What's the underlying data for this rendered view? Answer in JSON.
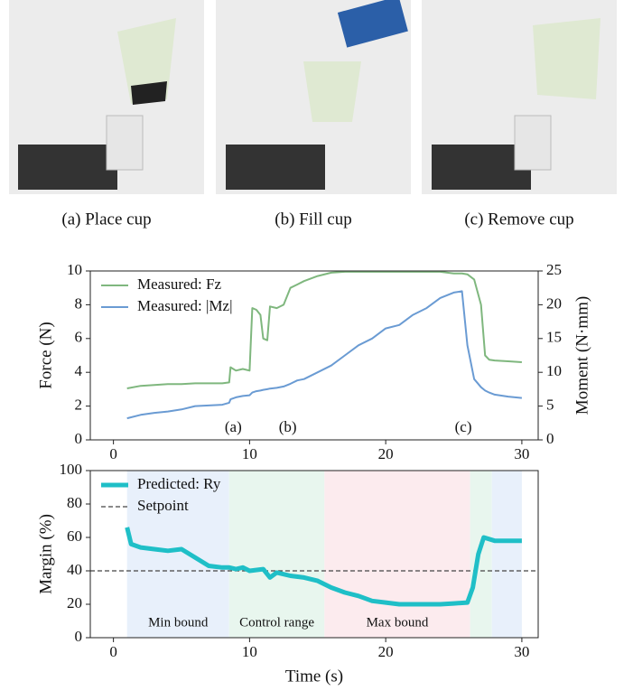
{
  "photos": {
    "captions": [
      "(a) Place cup",
      "(b) Fill cup",
      "(c) Remove cup"
    ]
  },
  "chart_data": [
    {
      "type": "line",
      "ylabel": "Force (N)",
      "y2label": "Moment (N·mm)",
      "xlim": [
        -1.7,
        31.2
      ],
      "xticks": [
        0,
        10,
        20,
        30
      ],
      "ylim": [
        0,
        10
      ],
      "yticks": [
        0,
        2,
        4,
        6,
        8,
        10
      ],
      "y2lim": [
        0,
        25
      ],
      "y2ticks": [
        0,
        5,
        10,
        15,
        20,
        25
      ],
      "legend": "upper left",
      "x": [
        1,
        2,
        3,
        4,
        5,
        6,
        7,
        8,
        8.5,
        8.6,
        9,
        9.5,
        10,
        10.2,
        10.5,
        10.8,
        11,
        11.3,
        11.5,
        12,
        12.5,
        13,
        13.5,
        14,
        15,
        16,
        17,
        18,
        19,
        20,
        21,
        22,
        23,
        24,
        25,
        25.6,
        26,
        26.5,
        27,
        27.3,
        27.6,
        28,
        29,
        30
      ],
      "series": [
        {
          "name": "Measured: Fz",
          "color": "#7fb77e",
          "values": [
            3.05,
            3.2,
            3.25,
            3.3,
            3.3,
            3.35,
            3.35,
            3.35,
            3.4,
            4.3,
            4.1,
            4.2,
            4.1,
            7.8,
            7.7,
            7.4,
            6.0,
            5.9,
            7.9,
            7.8,
            8.0,
            9.0,
            9.2,
            9.4,
            9.7,
            9.9,
            9.95,
            9.95,
            9.95,
            9.95,
            9.95,
            9.95,
            9.95,
            9.95,
            9.85,
            9.85,
            9.8,
            9.5,
            8.0,
            5.0,
            4.75,
            4.7,
            4.65,
            4.6
          ]
        },
        {
          "name": "Measured: |Mz|",
          "color": "#6a9bd3",
          "axis": "y2",
          "values": [
            3.2,
            3.7,
            4.0,
            4.2,
            4.5,
            5.0,
            5.1,
            5.2,
            5.5,
            6.0,
            6.3,
            6.5,
            6.6,
            7.0,
            7.2,
            7.3,
            7.4,
            7.5,
            7.6,
            7.7,
            7.9,
            8.3,
            8.8,
            9.0,
            10.0,
            11.0,
            12.5,
            14.0,
            15.0,
            16.5,
            17.0,
            18.5,
            19.5,
            21.0,
            21.8,
            22.0,
            14.0,
            9.0,
            7.8,
            7.3,
            7.0,
            6.7,
            6.4,
            6.2
          ]
        }
      ],
      "annotations": [
        {
          "text": "(a)",
          "x": 8.8,
          "y": 0.7
        },
        {
          "text": "(b)",
          "x": 12.8,
          "y": 0.7
        },
        {
          "text": "(c)",
          "x": 25.7,
          "y": 0.7
        }
      ]
    },
    {
      "type": "line",
      "ylabel": "Margin (%)",
      "xlabel": "Time (s)",
      "xlim": [
        -1.7,
        31.2
      ],
      "xticks": [
        0,
        10,
        20,
        30
      ],
      "ylim": [
        0,
        100
      ],
      "yticks": [
        0,
        20,
        40,
        60,
        80,
        100
      ],
      "legend": "upper left",
      "regions": [
        {
          "label": "Min bound",
          "start": 1,
          "end": 8.5,
          "color": "#e8f0fb"
        },
        {
          "label": "Control range",
          "start": 8.5,
          "end": 15.5,
          "color": "#e8f6ee"
        },
        {
          "label": "Max bound",
          "start": 15.5,
          "end": 26.2,
          "color": "#fcebee"
        },
        {
          "label": null,
          "start": 26.2,
          "end": 27.8,
          "color": "#e8f6ee"
        },
        {
          "label": null,
          "start": 27.8,
          "end": 30,
          "color": "#e8f0fb"
        }
      ],
      "setpoint": {
        "name": "Setpoint",
        "value": 40,
        "color": "#444"
      },
      "x": [
        1,
        1.3,
        2,
        3,
        4,
        5,
        6,
        7,
        8,
        8.5,
        9,
        9.5,
        10,
        11,
        11.5,
        12,
        13,
        14,
        15,
        16,
        17,
        18,
        19,
        20,
        21,
        22,
        23,
        24,
        25,
        26,
        26.4,
        26.8,
        27.2,
        28,
        29,
        30
      ],
      "series": [
        {
          "name": "Predicted: Ry",
          "color": "#1fbfc7",
          "values": [
            66,
            56,
            54,
            53,
            52,
            53,
            48,
            43,
            42,
            42,
            41,
            42,
            40,
            41,
            36,
            39,
            37,
            36,
            34,
            30,
            27,
            25,
            22,
            21,
            20,
            20,
            20,
            20,
            20.5,
            21,
            30,
            50,
            60,
            58,
            58,
            58
          ]
        }
      ]
    }
  ]
}
